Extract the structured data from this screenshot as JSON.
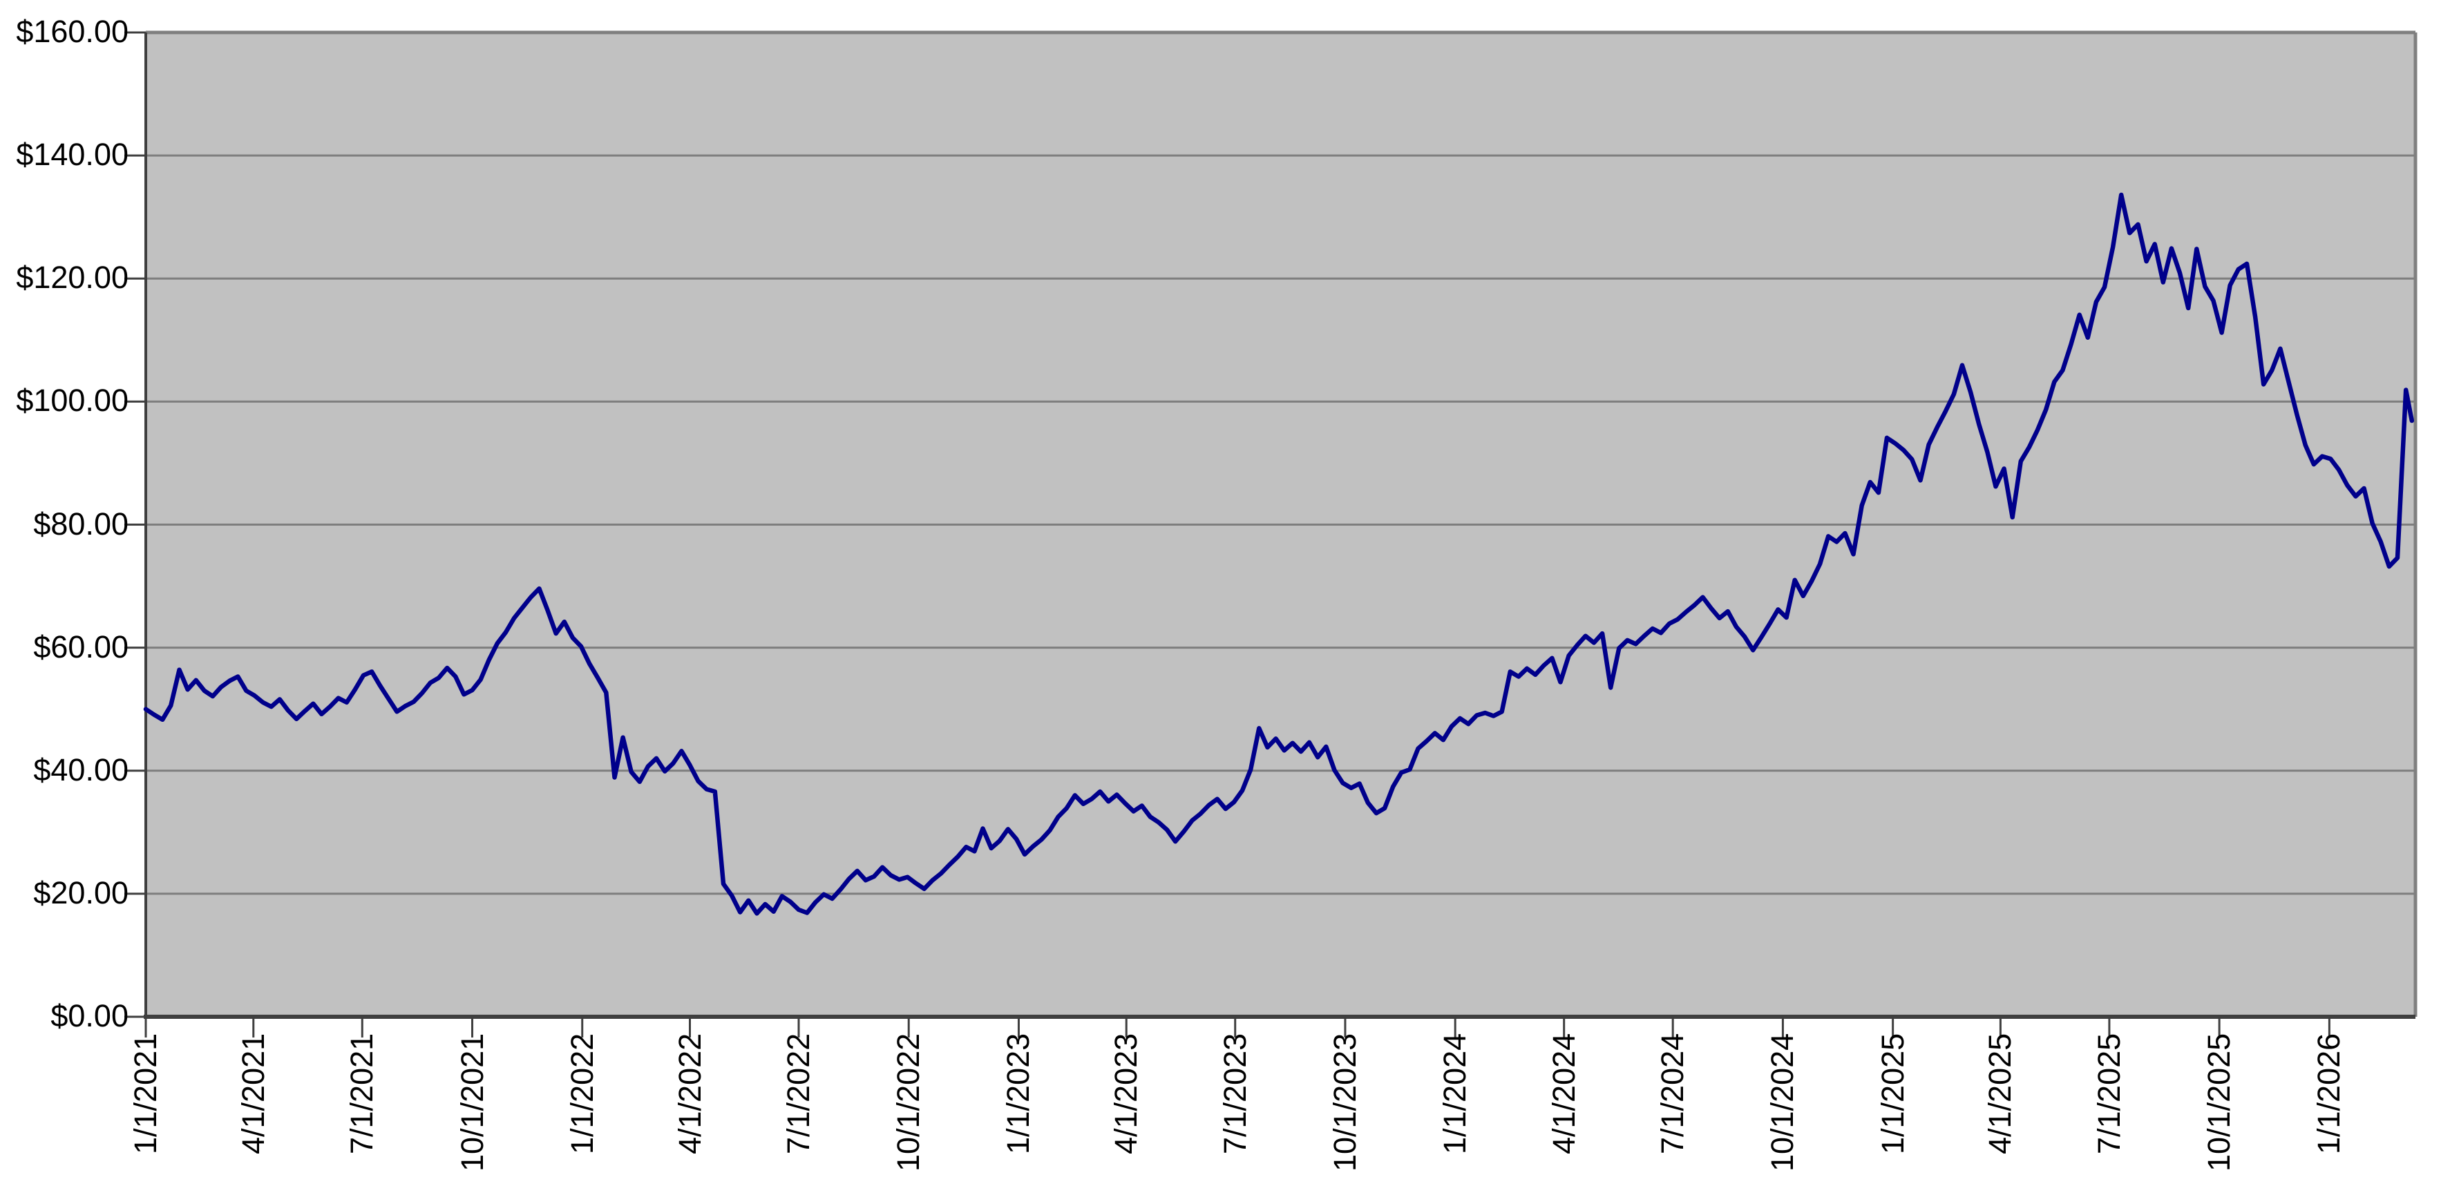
{
  "chart_data": {
    "type": "line",
    "title": "",
    "grid": "on",
    "legend": "none",
    "plot_bg_color": "#c1c1c1",
    "gridline_color": "#7e7e7e",
    "axis_color": "#3f3f3f",
    "border_color": "#7f7f7f",
    "line_color": "#00008b",
    "y_axis": {
      "min": 0,
      "max": 160,
      "step": 20,
      "tick_labels": [
        "$0.00",
        "$20.00",
        "$40.00",
        "$60.00",
        "$80.00",
        "$100.00",
        "$120.00",
        "$140.00",
        "$160.00"
      ]
    },
    "x_axis": {
      "start": "2021-01-01",
      "end": "2026-03-14",
      "ticks": [
        {
          "label": "1/1/2021",
          "date": "2021-01-01"
        },
        {
          "label": "4/1/2021",
          "date": "2021-04-01"
        },
        {
          "label": "7/1/2021",
          "date": "2021-07-01"
        },
        {
          "label": "10/1/2021",
          "date": "2021-10-01"
        },
        {
          "label": "1/1/2022",
          "date": "2022-01-01"
        },
        {
          "label": "4/1/2022",
          "date": "2022-04-01"
        },
        {
          "label": "7/1/2022",
          "date": "2022-07-01"
        },
        {
          "label": "10/1/2022",
          "date": "2022-10-01"
        },
        {
          "label": "1/1/2023",
          "date": "2023-01-01"
        },
        {
          "label": "4/1/2023",
          "date": "2023-04-01"
        },
        {
          "label": "7/1/2023",
          "date": "2023-07-01"
        },
        {
          "label": "10/1/2023",
          "date": "2023-10-01"
        },
        {
          "label": "1/1/2024",
          "date": "2024-01-01"
        },
        {
          "label": "4/1/2024",
          "date": "2024-04-01"
        },
        {
          "label": "7/1/2024",
          "date": "2024-07-01"
        },
        {
          "label": "10/1/2024",
          "date": "2024-10-01"
        },
        {
          "label": "1/1/2025",
          "date": "2025-01-01"
        },
        {
          "label": "4/1/2025",
          "date": "2025-04-01"
        },
        {
          "label": "7/1/2025",
          "date": "2025-07-01"
        },
        {
          "label": "10/1/2025",
          "date": "2025-10-01"
        },
        {
          "label": "1/1/2026",
          "date": "2026-01-01"
        }
      ]
    },
    "points": [
      [
        "2021-01-01",
        50.0
      ],
      [
        "2021-01-08",
        49.1
      ],
      [
        "2021-01-15",
        48.3
      ],
      [
        "2021-01-22",
        50.6
      ],
      [
        "2021-01-29",
        56.4
      ],
      [
        "2021-02-05",
        53.2
      ],
      [
        "2021-02-12",
        54.7
      ],
      [
        "2021-02-19",
        53.0
      ],
      [
        "2021-02-26",
        52.1
      ],
      [
        "2021-03-05",
        53.6
      ],
      [
        "2021-03-12",
        54.6
      ],
      [
        "2021-03-19",
        55.3
      ],
      [
        "2021-03-26",
        53.0
      ],
      [
        "2021-04-02",
        52.2
      ],
      [
        "2021-04-09",
        51.1
      ],
      [
        "2021-04-16",
        50.4
      ],
      [
        "2021-04-23",
        51.6
      ],
      [
        "2021-04-30",
        49.8
      ],
      [
        "2021-05-07",
        48.4
      ],
      [
        "2021-05-14",
        49.7
      ],
      [
        "2021-05-21",
        50.9
      ],
      [
        "2021-05-28",
        49.2
      ],
      [
        "2021-06-04",
        50.4
      ],
      [
        "2021-06-11",
        51.8
      ],
      [
        "2021-06-18",
        51.1
      ],
      [
        "2021-06-25",
        53.2
      ],
      [
        "2021-07-02",
        55.5
      ],
      [
        "2021-07-09",
        56.1
      ],
      [
        "2021-07-16",
        53.8
      ],
      [
        "2021-07-23",
        51.7
      ],
      [
        "2021-07-30",
        49.6
      ],
      [
        "2021-08-06",
        50.5
      ],
      [
        "2021-08-13",
        51.2
      ],
      [
        "2021-08-20",
        52.6
      ],
      [
        "2021-08-27",
        54.3
      ],
      [
        "2021-09-03",
        55.1
      ],
      [
        "2021-09-10",
        56.7
      ],
      [
        "2021-09-17",
        55.3
      ],
      [
        "2021-09-24",
        52.4
      ],
      [
        "2021-10-01",
        53.1
      ],
      [
        "2021-10-08",
        54.8
      ],
      [
        "2021-10-15",
        58.0
      ],
      [
        "2021-10-22",
        60.7
      ],
      [
        "2021-10-29",
        62.5
      ],
      [
        "2021-11-05",
        64.8
      ],
      [
        "2021-11-12",
        66.5
      ],
      [
        "2021-11-19",
        68.2
      ],
      [
        "2021-11-26",
        69.6
      ],
      [
        "2021-12-03",
        66.1
      ],
      [
        "2021-12-10",
        62.3
      ],
      [
        "2021-12-17",
        64.2
      ],
      [
        "2021-12-24",
        61.6
      ],
      [
        "2021-12-31",
        60.2
      ],
      [
        "2022-01-07",
        57.4
      ],
      [
        "2022-01-14",
        55.1
      ],
      [
        "2022-01-21",
        52.7
      ],
      [
        "2022-01-28",
        38.9
      ],
      [
        "2022-02-04",
        45.4
      ],
      [
        "2022-02-11",
        39.8
      ],
      [
        "2022-02-18",
        38.2
      ],
      [
        "2022-02-25",
        40.7
      ],
      [
        "2022-03-04",
        42.0
      ],
      [
        "2022-03-11",
        39.9
      ],
      [
        "2022-03-18",
        41.2
      ],
      [
        "2022-03-25",
        43.2
      ],
      [
        "2022-04-01",
        40.9
      ],
      [
        "2022-04-08",
        38.3
      ],
      [
        "2022-04-15",
        37.0
      ],
      [
        "2022-04-22",
        36.6
      ],
      [
        "2022-04-29",
        21.6
      ],
      [
        "2022-05-06",
        19.7
      ],
      [
        "2022-05-13",
        17.0
      ],
      [
        "2022-05-20",
        18.9
      ],
      [
        "2022-05-27",
        16.8
      ],
      [
        "2022-06-03",
        18.3
      ],
      [
        "2022-06-10",
        17.1
      ],
      [
        "2022-06-17",
        19.6
      ],
      [
        "2022-06-24",
        18.7
      ],
      [
        "2022-07-01",
        17.4
      ],
      [
        "2022-07-08",
        16.9
      ],
      [
        "2022-07-15",
        18.6
      ],
      [
        "2022-07-22",
        19.9
      ],
      [
        "2022-07-29",
        19.2
      ],
      [
        "2022-08-05",
        20.7
      ],
      [
        "2022-08-12",
        22.4
      ],
      [
        "2022-08-19",
        23.7
      ],
      [
        "2022-08-26",
        22.2
      ],
      [
        "2022-09-02",
        22.8
      ],
      [
        "2022-09-09",
        24.3
      ],
      [
        "2022-09-16",
        23.0
      ],
      [
        "2022-09-23",
        22.3
      ],
      [
        "2022-09-30",
        22.7
      ],
      [
        "2022-10-07",
        21.7
      ],
      [
        "2022-10-14",
        20.8
      ],
      [
        "2022-10-21",
        22.2
      ],
      [
        "2022-10-28",
        23.3
      ],
      [
        "2022-11-04",
        24.7
      ],
      [
        "2022-11-11",
        26.0
      ],
      [
        "2022-11-18",
        27.6
      ],
      [
        "2022-11-25",
        26.9
      ],
      [
        "2022-12-02",
        30.6
      ],
      [
        "2022-12-09",
        27.4
      ],
      [
        "2022-12-16",
        28.6
      ],
      [
        "2022-12-23",
        30.5
      ],
      [
        "2022-12-30",
        28.9
      ],
      [
        "2023-01-06",
        26.4
      ],
      [
        "2023-01-13",
        27.7
      ],
      [
        "2023-01-20",
        28.8
      ],
      [
        "2023-01-27",
        30.3
      ],
      [
        "2023-02-03",
        32.5
      ],
      [
        "2023-02-10",
        33.9
      ],
      [
        "2023-02-17",
        36.0
      ],
      [
        "2023-02-24",
        34.6
      ],
      [
        "2023-03-03",
        35.4
      ],
      [
        "2023-03-10",
        36.6
      ],
      [
        "2023-03-17",
        35.0
      ],
      [
        "2023-03-24",
        36.1
      ],
      [
        "2023-03-31",
        34.7
      ],
      [
        "2023-04-07",
        33.4
      ],
      [
        "2023-04-14",
        34.3
      ],
      [
        "2023-04-21",
        32.5
      ],
      [
        "2023-04-28",
        31.6
      ],
      [
        "2023-05-05",
        30.4
      ],
      [
        "2023-05-12",
        28.5
      ],
      [
        "2023-05-19",
        30.1
      ],
      [
        "2023-05-26",
        31.9
      ],
      [
        "2023-06-02",
        33.0
      ],
      [
        "2023-06-09",
        34.4
      ],
      [
        "2023-06-16",
        35.4
      ],
      [
        "2023-06-23",
        33.8
      ],
      [
        "2023-06-30",
        34.9
      ],
      [
        "2023-07-07",
        36.8
      ],
      [
        "2023-07-14",
        40.2
      ],
      [
        "2023-07-21",
        46.9
      ],
      [
        "2023-07-28",
        43.8
      ],
      [
        "2023-08-04",
        45.2
      ],
      [
        "2023-08-11",
        43.3
      ],
      [
        "2023-08-18",
        44.5
      ],
      [
        "2023-08-25",
        43.1
      ],
      [
        "2023-09-01",
        44.6
      ],
      [
        "2023-09-08",
        42.2
      ],
      [
        "2023-09-15",
        43.9
      ],
      [
        "2023-09-22",
        40.1
      ],
      [
        "2023-09-29",
        38.0
      ],
      [
        "2023-10-06",
        37.2
      ],
      [
        "2023-10-13",
        37.9
      ],
      [
        "2023-10-20",
        34.8
      ],
      [
        "2023-10-27",
        33.1
      ],
      [
        "2023-11-03",
        33.9
      ],
      [
        "2023-11-10",
        37.4
      ],
      [
        "2023-11-17",
        39.7
      ],
      [
        "2023-11-24",
        40.2
      ],
      [
        "2023-12-01",
        43.6
      ],
      [
        "2023-12-08",
        44.8
      ],
      [
        "2023-12-15",
        46.1
      ],
      [
        "2023-12-22",
        45.0
      ],
      [
        "2023-12-29",
        47.2
      ],
      [
        "2024-01-05",
        48.5
      ],
      [
        "2024-01-12",
        47.6
      ],
      [
        "2024-01-19",
        49.0
      ],
      [
        "2024-01-26",
        49.4
      ],
      [
        "2024-02-02",
        48.9
      ],
      [
        "2024-02-09",
        49.6
      ],
      [
        "2024-02-16",
        56.1
      ],
      [
        "2024-02-23",
        55.3
      ],
      [
        "2024-03-01",
        56.6
      ],
      [
        "2024-03-08",
        55.6
      ],
      [
        "2024-03-15",
        57.1
      ],
      [
        "2024-03-22",
        58.3
      ],
      [
        "2024-03-29",
        54.4
      ],
      [
        "2024-04-05",
        58.7
      ],
      [
        "2024-04-12",
        60.4
      ],
      [
        "2024-04-19",
        61.9
      ],
      [
        "2024-04-26",
        60.8
      ],
      [
        "2024-05-03",
        62.3
      ],
      [
        "2024-05-10",
        53.5
      ],
      [
        "2024-05-17",
        59.9
      ],
      [
        "2024-05-24",
        61.2
      ],
      [
        "2024-05-31",
        60.6
      ],
      [
        "2024-06-07",
        61.9
      ],
      [
        "2024-06-14",
        63.1
      ],
      [
        "2024-06-21",
        62.4
      ],
      [
        "2024-06-28",
        63.9
      ],
      [
        "2024-07-05",
        64.6
      ],
      [
        "2024-07-12",
        65.8
      ],
      [
        "2024-07-19",
        66.9
      ],
      [
        "2024-07-26",
        68.2
      ],
      [
        "2024-08-02",
        66.4
      ],
      [
        "2024-08-09",
        64.8
      ],
      [
        "2024-08-16",
        65.9
      ],
      [
        "2024-08-23",
        63.4
      ],
      [
        "2024-08-30",
        61.8
      ],
      [
        "2024-09-06",
        59.6
      ],
      [
        "2024-09-13",
        61.7
      ],
      [
        "2024-09-20",
        63.9
      ],
      [
        "2024-09-27",
        66.2
      ],
      [
        "2024-10-04",
        64.9
      ],
      [
        "2024-10-11",
        71.0
      ],
      [
        "2024-10-18",
        68.4
      ],
      [
        "2024-10-25",
        70.8
      ],
      [
        "2024-11-01",
        73.6
      ],
      [
        "2024-11-08",
        78.1
      ],
      [
        "2024-11-15",
        77.2
      ],
      [
        "2024-11-22",
        78.6
      ],
      [
        "2024-11-29",
        75.2
      ],
      [
        "2024-12-06",
        83.1
      ],
      [
        "2024-12-13",
        86.9
      ],
      [
        "2024-12-20",
        85.2
      ],
      [
        "2024-12-27",
        94.1
      ],
      [
        "2025-01-03",
        93.2
      ],
      [
        "2025-01-10",
        92.1
      ],
      [
        "2025-01-17",
        90.6
      ],
      [
        "2025-01-24",
        87.2
      ],
      [
        "2025-01-31",
        93.0
      ],
      [
        "2025-02-07",
        95.8
      ],
      [
        "2025-02-14",
        98.4
      ],
      [
        "2025-02-21",
        101.2
      ],
      [
        "2025-02-28",
        105.9
      ],
      [
        "2025-03-07",
        101.5
      ],
      [
        "2025-03-14",
        96.3
      ],
      [
        "2025-03-21",
        91.8
      ],
      [
        "2025-03-28",
        86.2
      ],
      [
        "2025-04-04",
        89.1
      ],
      [
        "2025-04-11",
        81.2
      ],
      [
        "2025-04-18",
        90.3
      ],
      [
        "2025-04-25",
        92.6
      ],
      [
        "2025-05-02",
        95.4
      ],
      [
        "2025-05-09",
        98.7
      ],
      [
        "2025-05-16",
        103.2
      ],
      [
        "2025-05-23",
        105.1
      ],
      [
        "2025-05-30",
        109.3
      ],
      [
        "2025-06-06",
        114.1
      ],
      [
        "2025-06-13",
        110.4
      ],
      [
        "2025-06-20",
        116.2
      ],
      [
        "2025-06-27",
        118.6
      ],
      [
        "2025-07-04",
        125.1
      ],
      [
        "2025-07-11",
        133.6
      ],
      [
        "2025-07-18",
        127.4
      ],
      [
        "2025-07-25",
        128.8
      ],
      [
        "2025-08-01",
        122.8
      ],
      [
        "2025-08-08",
        125.6
      ],
      [
        "2025-08-15",
        119.4
      ],
      [
        "2025-08-22",
        124.9
      ],
      [
        "2025-08-29",
        120.9
      ],
      [
        "2025-09-05",
        115.2
      ],
      [
        "2025-09-12",
        124.8
      ],
      [
        "2025-09-19",
        118.7
      ],
      [
        "2025-09-26",
        116.4
      ],
      [
        "2025-10-03",
        111.2
      ],
      [
        "2025-10-10",
        118.9
      ],
      [
        "2025-10-17",
        121.5
      ],
      [
        "2025-10-24",
        122.4
      ],
      [
        "2025-10-31",
        113.8
      ],
      [
        "2025-11-07",
        102.8
      ],
      [
        "2025-11-14",
        105.1
      ],
      [
        "2025-11-21",
        108.6
      ],
      [
        "2025-11-28",
        103.2
      ],
      [
        "2025-12-05",
        97.8
      ],
      [
        "2025-12-12",
        92.9
      ],
      [
        "2025-12-19",
        89.8
      ],
      [
        "2025-12-26",
        91.1
      ],
      [
        "2026-01-02",
        90.7
      ],
      [
        "2026-01-09",
        88.9
      ],
      [
        "2026-01-16",
        86.4
      ],
      [
        "2026-01-23",
        84.6
      ],
      [
        "2026-01-30",
        85.9
      ],
      [
        "2026-02-06",
        80.2
      ],
      [
        "2026-02-13",
        77.2
      ],
      [
        "2026-02-20",
        73.2
      ],
      [
        "2026-02-27",
        74.6
      ],
      [
        "2026-03-06",
        101.9
      ],
      [
        "2026-03-11",
        96.9
      ]
    ]
  }
}
